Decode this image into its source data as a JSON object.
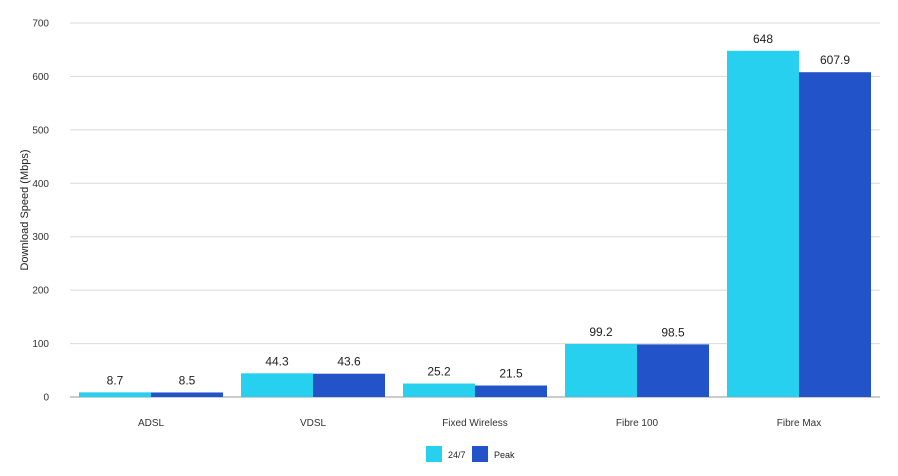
{
  "chart_data": {
    "type": "bar",
    "categories": [
      "ADSL",
      "VDSL",
      "Fixed Wireless",
      "Fibre 100",
      "Fibre Max"
    ],
    "series": [
      {
        "name": "24/7",
        "values": [
          8.7,
          44.3,
          25.2,
          99.2,
          648
        ],
        "labels": [
          "8.7",
          "44.3",
          "25.2",
          "99.2",
          "648"
        ],
        "color": "#27d0ee"
      },
      {
        "name": "Peak",
        "values": [
          8.5,
          43.6,
          21.5,
          98.5,
          607.9
        ],
        "labels": [
          "8.5",
          "43.6",
          "21.5",
          "98.5",
          "607.9"
        ],
        "color": "#2253c8"
      }
    ],
    "title": "",
    "xlabel": "",
    "ylabel": "Download Speed (Mbps)",
    "ylim": [
      0,
      700
    ],
    "yticks": [
      0,
      100,
      200,
      300,
      400,
      500,
      600,
      700
    ],
    "ytick_labels": [
      "0",
      "100",
      "200",
      "300",
      "400",
      "500",
      "600",
      "700"
    ],
    "grid": true,
    "legend_position": "bottom-center"
  }
}
